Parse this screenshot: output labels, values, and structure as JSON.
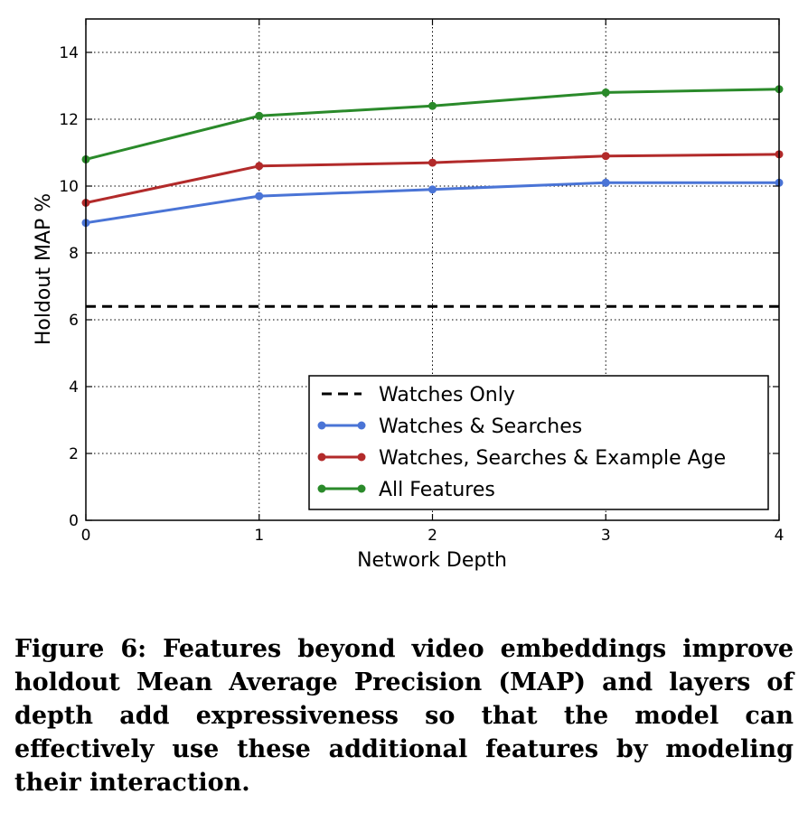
{
  "chart_data": {
    "type": "line",
    "xlabel": "Network Depth",
    "ylabel": "Holdout MAP %",
    "x": [
      0,
      1,
      2,
      3,
      4
    ],
    "xlim": [
      0,
      4
    ],
    "ylim": [
      0,
      15
    ],
    "xticks": [
      "0",
      "1",
      "2",
      "3",
      "4"
    ],
    "yticks": [
      "0",
      "2",
      "4",
      "6",
      "8",
      "10",
      "12",
      "14"
    ],
    "grid": true,
    "legend_position": "lower-right",
    "series": [
      {
        "name": "Watches Only",
        "style": "dashed",
        "markers": false,
        "color": "#000000",
        "values": [
          6.4,
          6.4,
          6.4,
          6.4,
          6.4
        ]
      },
      {
        "name": "Watches & Searches",
        "style": "solid",
        "markers": true,
        "color": "#4a74d6",
        "values": [
          8.9,
          9.7,
          9.9,
          10.1,
          10.1
        ]
      },
      {
        "name": "Watches, Searches & Example Age",
        "style": "solid",
        "markers": true,
        "color": "#b22a2a",
        "values": [
          9.5,
          10.6,
          10.7,
          10.9,
          10.95
        ]
      },
      {
        "name": "All Features",
        "style": "solid",
        "markers": true,
        "color": "#2a8a2a",
        "values": [
          10.8,
          12.1,
          12.4,
          12.8,
          12.9
        ]
      }
    ]
  },
  "caption": "Figure 6: Features beyond video embeddings improve holdout Mean Average Precision (MAP) and layers of depth add expressiveness so that the model can effectively use these additional features by modeling their interaction."
}
